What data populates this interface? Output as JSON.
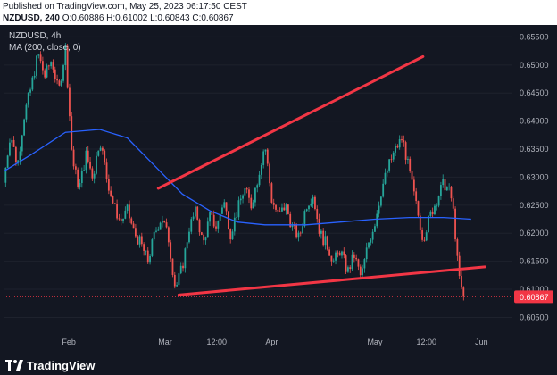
{
  "header": {
    "published": "Published on TradingView.com, May 25, 2023 06:17:50 CEST",
    "symbol_line": "NZDUSD, 240",
    "ohlc": "O:0.60886 H:0.61002 L:0.60843 C:0.60867"
  },
  "legend": {
    "symbol": "NZDUSD, 4h",
    "indicator": "MA (200, close, 0)"
  },
  "brand": {
    "name": "TradingView"
  },
  "colors": {
    "background": "#131722",
    "up": "#26a69a",
    "down": "#ef5350",
    "ma": "#2962ff",
    "trendline": "#f23645",
    "axis_text": "#b2b5be",
    "price_tag": "#f23645"
  },
  "chart_data": {
    "type": "candlestick",
    "instrument": "NZDUSD",
    "timeframe": "4h",
    "y_axis": {
      "ticks": [
        "0.65500",
        "0.65000",
        "0.64500",
        "0.64000",
        "0.63500",
        "0.63000",
        "0.62500",
        "0.62000",
        "0.61500",
        "0.61000",
        "0.60500"
      ],
      "range": [
        0.603,
        0.6565
      ]
    },
    "x_axis": {
      "ticks": [
        "Feb",
        "Mar",
        "12:00",
        "Apr",
        "May",
        "12:00",
        "Jun"
      ],
      "tick_positions_days": [
        1,
        29,
        44,
        60,
        90,
        105,
        121
      ],
      "range_days": [
        -18,
        130
      ]
    },
    "last_price": "0.60867",
    "close_series": [
      {
        "day": -18,
        "price": 0.629
      },
      {
        "day": -16,
        "price": 0.638
      },
      {
        "day": -14,
        "price": 0.632
      },
      {
        "day": -12,
        "price": 0.641
      },
      {
        "day": -10,
        "price": 0.646
      },
      {
        "day": -8,
        "price": 0.652
      },
      {
        "day": -6,
        "price": 0.648
      },
      {
        "day": -4,
        "price": 0.651
      },
      {
        "day": -2,
        "price": 0.645
      },
      {
        "day": 0,
        "price": 0.653
      },
      {
        "day": 2,
        "price": 0.633
      },
      {
        "day": 4,
        "price": 0.628
      },
      {
        "day": 6,
        "price": 0.634
      },
      {
        "day": 8,
        "price": 0.63
      },
      {
        "day": 10,
        "price": 0.637
      },
      {
        "day": 12,
        "price": 0.63
      },
      {
        "day": 14,
        "price": 0.625
      },
      {
        "day": 16,
        "price": 0.622
      },
      {
        "day": 18,
        "price": 0.624
      },
      {
        "day": 20,
        "price": 0.62
      },
      {
        "day": 22,
        "price": 0.618
      },
      {
        "day": 24,
        "price": 0.615
      },
      {
        "day": 26,
        "price": 0.62
      },
      {
        "day": 28,
        "price": 0.623
      },
      {
        "day": 30,
        "price": 0.619
      },
      {
        "day": 32,
        "price": 0.61
      },
      {
        "day": 34,
        "price": 0.614
      },
      {
        "day": 36,
        "price": 0.621
      },
      {
        "day": 38,
        "price": 0.624
      },
      {
        "day": 40,
        "price": 0.618
      },
      {
        "day": 42,
        "price": 0.623
      },
      {
        "day": 44,
        "price": 0.621
      },
      {
        "day": 46,
        "price": 0.626
      },
      {
        "day": 48,
        "price": 0.62
      },
      {
        "day": 50,
        "price": 0.624
      },
      {
        "day": 52,
        "price": 0.628
      },
      {
        "day": 54,
        "price": 0.625
      },
      {
        "day": 56,
        "price": 0.63
      },
      {
        "day": 58,
        "price": 0.636
      },
      {
        "day": 60,
        "price": 0.626
      },
      {
        "day": 62,
        "price": 0.623
      },
      {
        "day": 64,
        "price": 0.625
      },
      {
        "day": 66,
        "price": 0.621
      },
      {
        "day": 68,
        "price": 0.619
      },
      {
        "day": 70,
        "price": 0.625
      },
      {
        "day": 72,
        "price": 0.627
      },
      {
        "day": 74,
        "price": 0.62
      },
      {
        "day": 76,
        "price": 0.618
      },
      {
        "day": 78,
        "price": 0.615
      },
      {
        "day": 80,
        "price": 0.617
      },
      {
        "day": 82,
        "price": 0.613
      },
      {
        "day": 84,
        "price": 0.616
      },
      {
        "day": 86,
        "price": 0.612
      },
      {
        "day": 88,
        "price": 0.618
      },
      {
        "day": 90,
        "price": 0.622
      },
      {
        "day": 92,
        "price": 0.628
      },
      {
        "day": 94,
        "price": 0.632
      },
      {
        "day": 96,
        "price": 0.635
      },
      {
        "day": 98,
        "price": 0.637
      },
      {
        "day": 100,
        "price": 0.631
      },
      {
        "day": 102,
        "price": 0.625
      },
      {
        "day": 104,
        "price": 0.619
      },
      {
        "day": 106,
        "price": 0.623
      },
      {
        "day": 108,
        "price": 0.626
      },
      {
        "day": 110,
        "price": 0.629
      },
      {
        "day": 112,
        "price": 0.627
      },
      {
        "day": 113,
        "price": 0.623
      },
      {
        "day": 114,
        "price": 0.615
      },
      {
        "day": 115,
        "price": 0.61
      },
      {
        "day": 116,
        "price": 0.60867
      }
    ],
    "ma200_series": [
      {
        "day": -18,
        "price": 0.631
      },
      {
        "day": -10,
        "price": 0.634
      },
      {
        "day": 0,
        "price": 0.638
      },
      {
        "day": 10,
        "price": 0.6385
      },
      {
        "day": 18,
        "price": 0.637
      },
      {
        "day": 26,
        "price": 0.632
      },
      {
        "day": 34,
        "price": 0.627
      },
      {
        "day": 42,
        "price": 0.624
      },
      {
        "day": 50,
        "price": 0.622
      },
      {
        "day": 58,
        "price": 0.6215
      },
      {
        "day": 70,
        "price": 0.6215
      },
      {
        "day": 80,
        "price": 0.622
      },
      {
        "day": 90,
        "price": 0.6225
      },
      {
        "day": 100,
        "price": 0.6228
      },
      {
        "day": 110,
        "price": 0.6228
      },
      {
        "day": 118,
        "price": 0.6225
      }
    ],
    "trendlines": [
      {
        "name": "upper",
        "from": {
          "day": 27,
          "price": 0.628
        },
        "to": {
          "day": 104,
          "price": 0.6515
        }
      },
      {
        "name": "lower",
        "from": {
          "day": 33,
          "price": 0.609
        },
        "to": {
          "day": 122,
          "price": 0.614
        }
      }
    ]
  }
}
